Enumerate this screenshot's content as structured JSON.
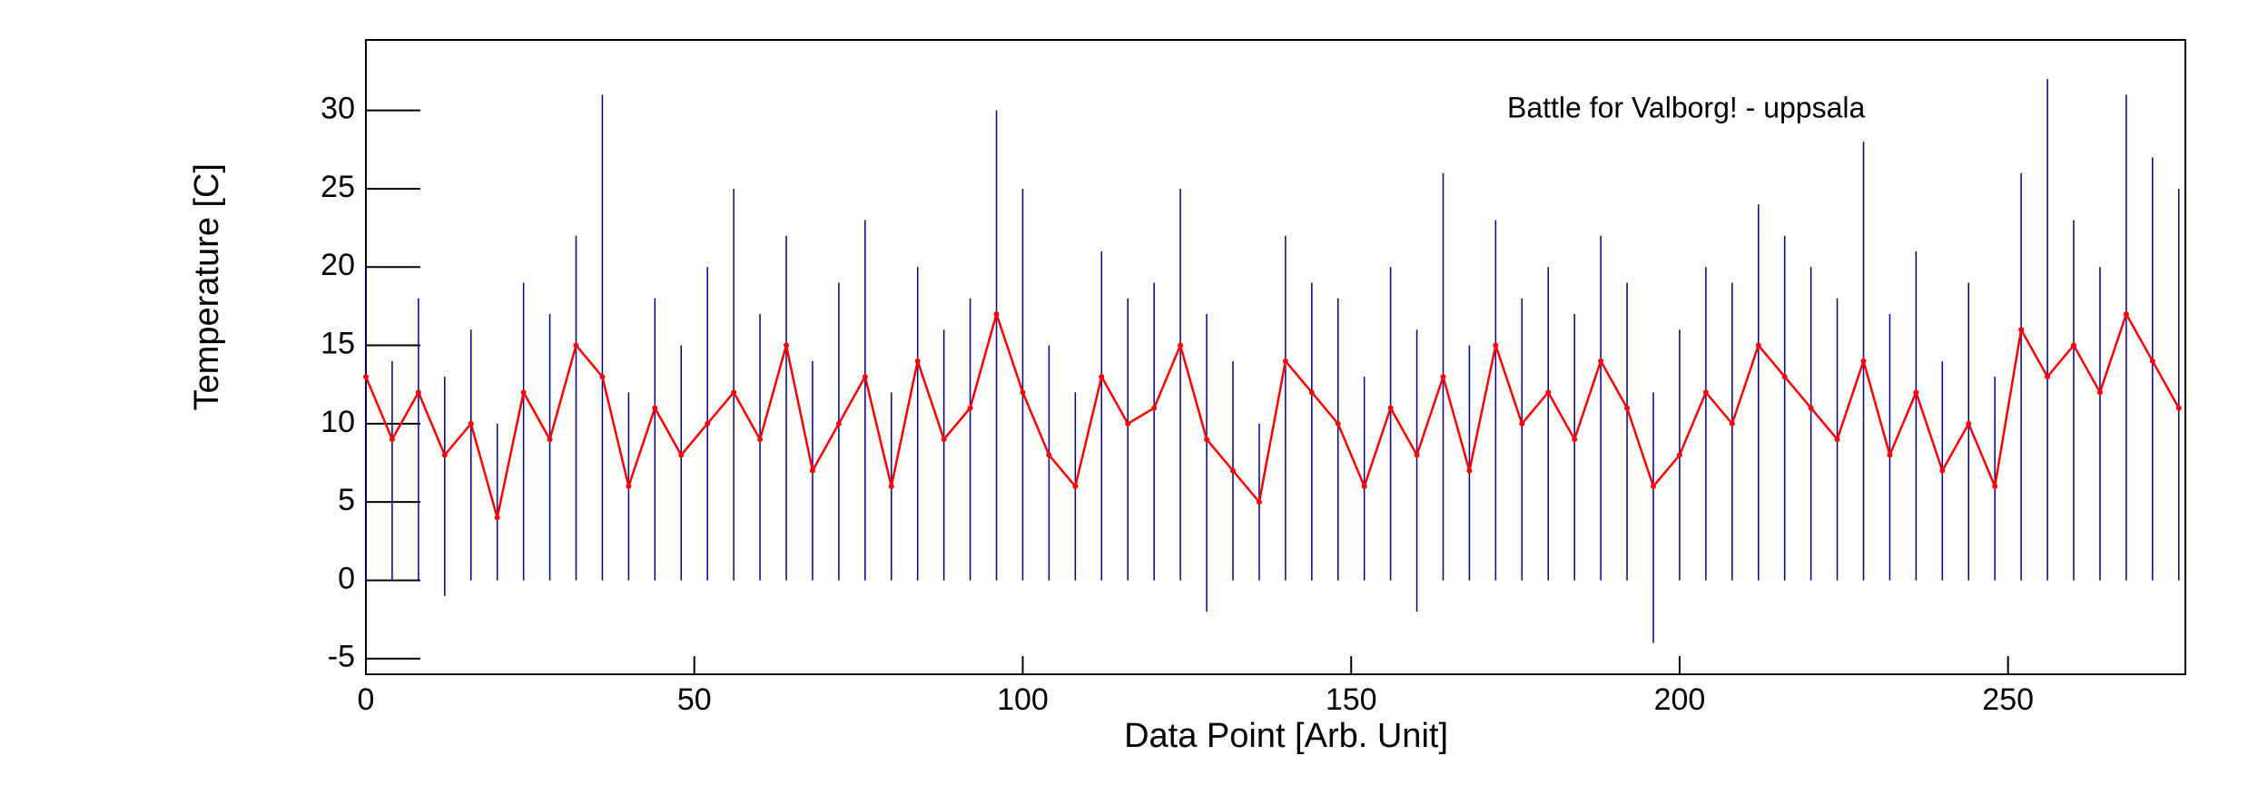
{
  "chart_data": {
    "type": "errorline",
    "title": "Battle for Valborg! - uppsala",
    "x_label": "Data Point [Arb. Unit]",
    "y_label": "Temperature [C]",
    "x": [
      0,
      4,
      8,
      12,
      16,
      20,
      24,
      28,
      32,
      36,
      40,
      44,
      48,
      52,
      56,
      60,
      64,
      68,
      72,
      76,
      80,
      84,
      88,
      92,
      96,
      100,
      104,
      108,
      112,
      116,
      120,
      124,
      128,
      132,
      136,
      140,
      144,
      148,
      152,
      156,
      160,
      164,
      168,
      172,
      176,
      180,
      184,
      188,
      192,
      196,
      200,
      204,
      208,
      212,
      216,
      220,
      224,
      228,
      232,
      236,
      240,
      244,
      248,
      252,
      256,
      260,
      264,
      268,
      272,
      276
    ],
    "values": [
      13,
      9,
      12,
      8,
      10,
      4,
      12,
      9,
      15,
      13,
      6,
      11,
      8,
      10,
      12,
      9,
      15,
      7,
      10,
      13,
      6,
      14,
      9,
      11,
      17,
      12,
      8,
      6,
      13,
      10,
      11,
      15,
      9,
      7,
      5,
      14,
      12,
      10,
      6,
      11,
      8,
      13,
      7,
      15,
      10,
      12,
      9,
      14,
      11,
      6,
      8,
      12,
      10,
      15,
      13,
      11,
      9,
      14,
      8,
      12,
      7,
      10,
      6,
      16,
      13,
      15,
      12,
      17,
      14,
      11
    ],
    "min": [
      0,
      0,
      0,
      -1,
      0,
      0,
      0,
      0,
      0,
      0,
      0,
      0,
      0,
      0,
      0,
      0,
      0,
      0,
      0,
      0,
      0,
      0,
      0,
      0,
      0,
      0,
      0,
      0,
      0,
      0,
      0,
      0,
      -2,
      0,
      0,
      0,
      0,
      0,
      0,
      0,
      -2,
      0,
      0,
      0,
      0,
      0,
      0,
      0,
      0,
      -4,
      0,
      0,
      0,
      0,
      0,
      0,
      0,
      0,
      0,
      0,
      0,
      0,
      0,
      0,
      0,
      0,
      0,
      0,
      0,
      0
    ],
    "max": [
      20,
      14,
      18,
      13,
      16,
      10,
      19,
      17,
      22,
      31,
      12,
      18,
      15,
      20,
      25,
      17,
      22,
      14,
      19,
      23,
      12,
      20,
      16,
      18,
      30,
      25,
      15,
      12,
      21,
      18,
      19,
      25,
      17,
      14,
      10,
      22,
      19,
      18,
      13,
      20,
      16,
      26,
      15,
      23,
      18,
      20,
      17,
      22,
      19,
      12,
      16,
      20,
      19,
      24,
      22,
      20,
      18,
      28,
      17,
      21,
      14,
      19,
      13,
      26,
      32,
      23,
      20,
      31,
      27,
      25
    ],
    "color": "#ff0000",
    "range_color": "#00008b",
    "xlim": [
      0,
      277
    ],
    "ylim": [
      -6,
      34.5
    ],
    "xticks": [
      0,
      50,
      100,
      150,
      200,
      250
    ],
    "yticks": [
      -5,
      0,
      5,
      10,
      15,
      20,
      25,
      30
    ]
  }
}
